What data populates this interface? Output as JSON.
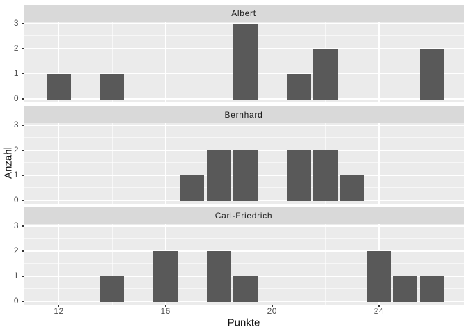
{
  "chart_data": {
    "type": "bar",
    "subtype": "faceted-histogram",
    "title": "",
    "xlabel": "Punkte",
    "ylabel": "Anzahl",
    "x_tick_labels": [
      12,
      16,
      20,
      24
    ],
    "x_minor_ticks": [
      14,
      18,
      22,
      26
    ],
    "y_tick_labels": [
      0,
      1,
      2,
      3
    ],
    "y_minor_ticks": [
      0.5,
      1.5,
      2.5
    ],
    "xlim": [
      10.68,
      27.19
    ],
    "ylim": [
      -0.14,
      3.08
    ],
    "bar_width": 0.9,
    "grid": "on",
    "legend": "none",
    "facets": [
      {
        "label": "Albert",
        "bars": [
          {
            "x": 12,
            "count": 1
          },
          {
            "x": 14,
            "count": 1
          },
          {
            "x": 19,
            "count": 3
          },
          {
            "x": 21,
            "count": 1
          },
          {
            "x": 22,
            "count": 2
          },
          {
            "x": 26,
            "count": 2
          }
        ]
      },
      {
        "label": "Bernhard",
        "bars": [
          {
            "x": 17,
            "count": 1
          },
          {
            "x": 18,
            "count": 2
          },
          {
            "x": 19,
            "count": 2
          },
          {
            "x": 21,
            "count": 2
          },
          {
            "x": 22,
            "count": 2
          },
          {
            "x": 23,
            "count": 1
          }
        ]
      },
      {
        "label": "Carl-Friedrich",
        "bars": [
          {
            "x": 14,
            "count": 1
          },
          {
            "x": 16,
            "count": 2
          },
          {
            "x": 18,
            "count": 2
          },
          {
            "x": 19,
            "count": 1
          },
          {
            "x": 24,
            "count": 2
          },
          {
            "x": 25,
            "count": 1
          },
          {
            "x": 26,
            "count": 1
          }
        ]
      }
    ]
  },
  "colors": {
    "bar": "#595959",
    "panel_bg": "#EBEBEB",
    "strip_bg": "#D9D9D9",
    "grid_major": "#FFFFFF",
    "grid_minor": "rgba(255,255,255,0.6)",
    "tick_label": "#4D4D4D",
    "tick_mark": "#333333",
    "axis_title": "#111111",
    "figure_bg": "#FFFFFF"
  }
}
